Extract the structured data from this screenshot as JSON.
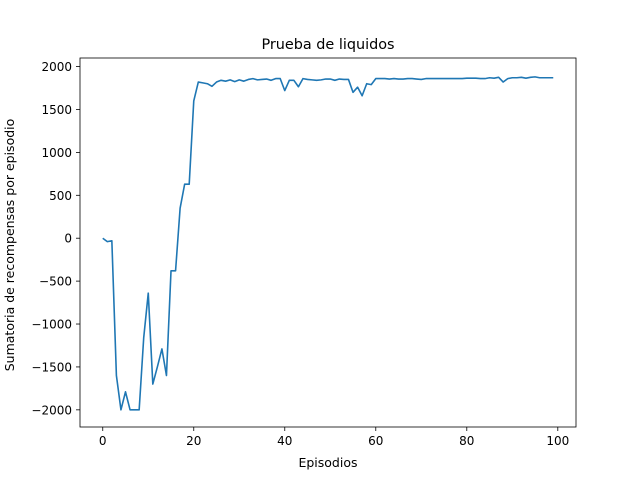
{
  "chart_data": {
    "type": "line",
    "title": "Prueba de liquidos",
    "xlabel": "Episodios",
    "ylabel": "Sumatoria de recompensas por episodio",
    "xlim": [
      -5,
      104
    ],
    "ylim": [
      -2200,
      2100
    ],
    "xticks": [
      0,
      20,
      40,
      60,
      80,
      100
    ],
    "yticks": [
      -2000,
      -1500,
      -1000,
      -500,
      0,
      500,
      1000,
      1500,
      2000
    ],
    "grid": false,
    "series": [
      {
        "color": "#1f77b4",
        "x": [
          0,
          1,
          2,
          3,
          4,
          5,
          6,
          7,
          8,
          9,
          10,
          11,
          12,
          13,
          14,
          15,
          16,
          17,
          18,
          19,
          20,
          21,
          22,
          23,
          24,
          25,
          26,
          27,
          28,
          29,
          30,
          31,
          32,
          33,
          34,
          35,
          36,
          37,
          38,
          39,
          40,
          41,
          42,
          43,
          44,
          45,
          46,
          47,
          48,
          49,
          50,
          51,
          52,
          53,
          54,
          55,
          56,
          57,
          58,
          59,
          60,
          61,
          62,
          63,
          64,
          65,
          66,
          67,
          68,
          69,
          70,
          71,
          72,
          73,
          74,
          75,
          76,
          77,
          78,
          79,
          80,
          81,
          82,
          83,
          84,
          85,
          86,
          87,
          88,
          89,
          90,
          91,
          92,
          93,
          94,
          95,
          96,
          97,
          98,
          99
        ],
        "values": [
          0,
          -40,
          -30,
          -1600,
          -2000,
          -1790,
          -2000,
          -2000,
          -2000,
          -1160,
          -640,
          -1700,
          -1500,
          -1290,
          -1600,
          -380,
          -380,
          350,
          630,
          630,
          1600,
          1820,
          1810,
          1800,
          1770,
          1820,
          1840,
          1830,
          1845,
          1825,
          1845,
          1830,
          1850,
          1860,
          1845,
          1850,
          1855,
          1840,
          1860,
          1860,
          1720,
          1840,
          1840,
          1765,
          1860,
          1850,
          1845,
          1840,
          1845,
          1855,
          1855,
          1840,
          1855,
          1850,
          1850,
          1700,
          1760,
          1660,
          1800,
          1790,
          1860,
          1860,
          1860,
          1855,
          1860,
          1855,
          1855,
          1860,
          1860,
          1855,
          1850,
          1860,
          1860,
          1860,
          1860,
          1860,
          1860,
          1860,
          1860,
          1860,
          1865,
          1865,
          1865,
          1860,
          1860,
          1870,
          1865,
          1875,
          1820,
          1860,
          1870,
          1870,
          1875,
          1865,
          1875,
          1880,
          1870,
          1870,
          1870,
          1870
        ]
      }
    ]
  }
}
